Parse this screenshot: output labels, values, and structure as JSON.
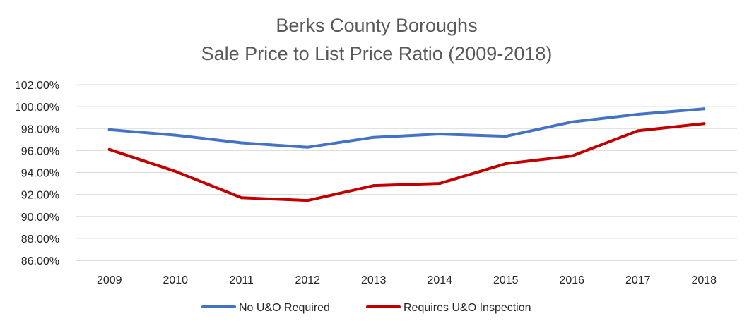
{
  "chart_data": {
    "type": "line",
    "title": "Berks County Boroughs",
    "subtitle": "Sale Price to List Price Ratio (2009-2018)",
    "xlabel": "",
    "ylabel": "",
    "categories": [
      "2009",
      "2010",
      "2011",
      "2012",
      "2013",
      "2014",
      "2015",
      "2016",
      "2017",
      "2018"
    ],
    "y_ticks": [
      "86.00%",
      "88.00%",
      "90.00%",
      "92.00%",
      "94.00%",
      "96.00%",
      "98.00%",
      "100.00%",
      "102.00%"
    ],
    "ylim": [
      86,
      102
    ],
    "grid": true,
    "legend_position": "bottom",
    "series": [
      {
        "name": "No U&O Required",
        "color": "#4472c4",
        "values": [
          97.9,
          97.4,
          96.7,
          96.3,
          97.2,
          97.5,
          97.3,
          98.6,
          99.3,
          99.8
        ]
      },
      {
        "name": "Requires U&O Inspection",
        "color": "#c00000",
        "values": [
          96.1,
          94.1,
          91.7,
          91.45,
          92.8,
          93.0,
          94.8,
          95.5,
          97.8,
          98.45
        ]
      }
    ]
  }
}
